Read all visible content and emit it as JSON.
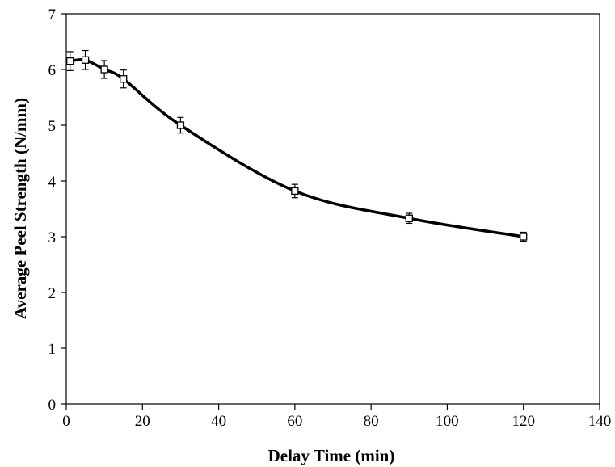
{
  "chart_data": {
    "type": "line",
    "title": "",
    "xlabel": "Delay Time (min)",
    "ylabel": "Average Peel Strength (N/mm)",
    "xlim": [
      0,
      140
    ],
    "ylim": [
      0,
      7
    ],
    "x_ticks": [
      0,
      20,
      40,
      60,
      80,
      100,
      120,
      140
    ],
    "y_ticks": [
      0,
      1,
      2,
      3,
      4,
      5,
      6,
      7
    ],
    "x_tick_labels": [
      "0",
      "20",
      "40",
      "60",
      "80",
      "100",
      "120",
      "140"
    ],
    "y_tick_labels": [
      "0",
      "1",
      "2",
      "3",
      "4",
      "5",
      "6",
      "7"
    ],
    "grid": false,
    "legend": "none",
    "line_color": "#000000",
    "marker": "open-square",
    "smooth": true,
    "series": [
      {
        "x": [
          1,
          5,
          10,
          15,
          30,
          60,
          90,
          120
        ],
        "y": [
          6.15,
          6.17,
          6.0,
          5.83,
          5.0,
          3.82,
          3.33,
          3.0
        ],
        "error": [
          0.17,
          0.17,
          0.16,
          0.16,
          0.14,
          0.12,
          0.09,
          0.08
        ]
      }
    ]
  }
}
